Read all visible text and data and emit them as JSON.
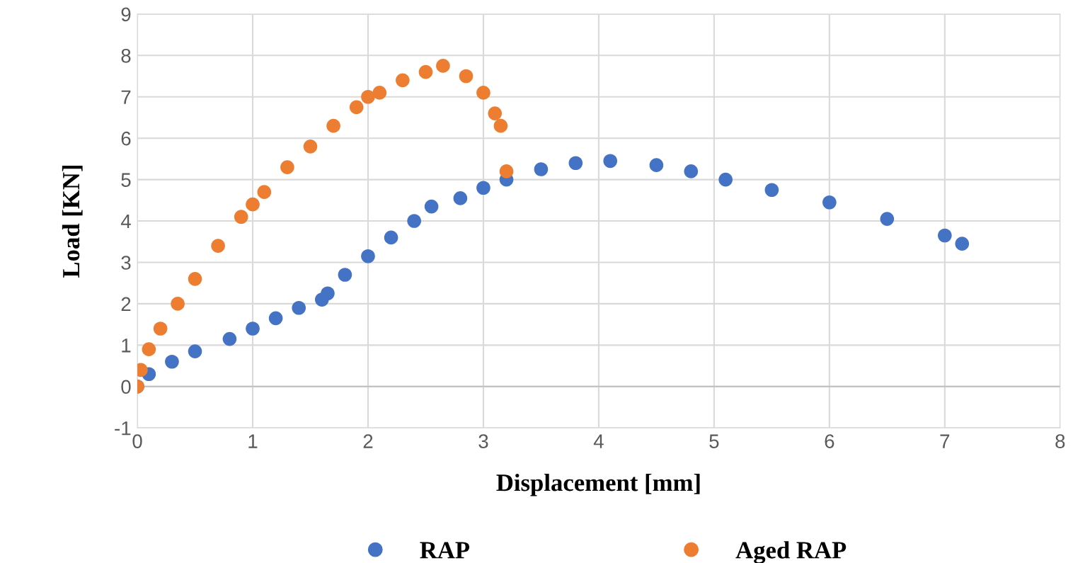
{
  "chart_data": {
    "type": "scatter",
    "xlabel": "Displacement [mm]",
    "ylabel": "Load [KN]",
    "xlim": [
      0,
      8
    ],
    "ylim": [
      -1,
      9
    ],
    "xticks": [
      0,
      1,
      2,
      3,
      4,
      5,
      6,
      7,
      8
    ],
    "yticks": [
      -1,
      0,
      1,
      2,
      3,
      4,
      5,
      6,
      7,
      8,
      9
    ],
    "grid": true,
    "legend": "bottom",
    "marker": "circle",
    "series": [
      {
        "name": "RAP",
        "color": "#4472c4",
        "x": [
          0,
          0.1,
          0.3,
          0.5,
          0.8,
          1.0,
          1.2,
          1.4,
          1.6,
          1.65,
          1.8,
          2.0,
          2.2,
          2.4,
          2.55,
          2.8,
          3.0,
          3.2,
          3.5,
          3.8,
          4.1,
          4.5,
          4.8,
          5.1,
          5.5,
          6.0,
          6.5,
          7.0,
          7.15
        ],
        "values": [
          0,
          0.3,
          0.6,
          0.85,
          1.15,
          1.4,
          1.65,
          1.9,
          2.1,
          2.25,
          2.7,
          3.15,
          3.6,
          4.0,
          4.35,
          4.55,
          4.8,
          5.0,
          5.25,
          5.4,
          5.45,
          5.35,
          5.2,
          5.0,
          4.75,
          4.45,
          4.05,
          3.65,
          3.45
        ]
      },
      {
        "name": "Aged RAP",
        "color": "#ed7d31",
        "x": [
          0,
          0.03,
          0.1,
          0.2,
          0.35,
          0.5,
          0.7,
          0.9,
          1.0,
          1.1,
          1.3,
          1.5,
          1.7,
          1.9,
          2.0,
          2.1,
          2.3,
          2.5,
          2.65,
          2.85,
          3.0,
          3.1,
          3.15,
          3.2
        ],
        "values": [
          0,
          0.4,
          0.9,
          1.4,
          2.0,
          2.6,
          3.4,
          4.1,
          4.4,
          4.7,
          5.3,
          5.8,
          6.3,
          6.75,
          7.0,
          7.1,
          7.4,
          7.6,
          7.75,
          7.5,
          7.1,
          6.6,
          6.3,
          5.2
        ]
      }
    ]
  }
}
